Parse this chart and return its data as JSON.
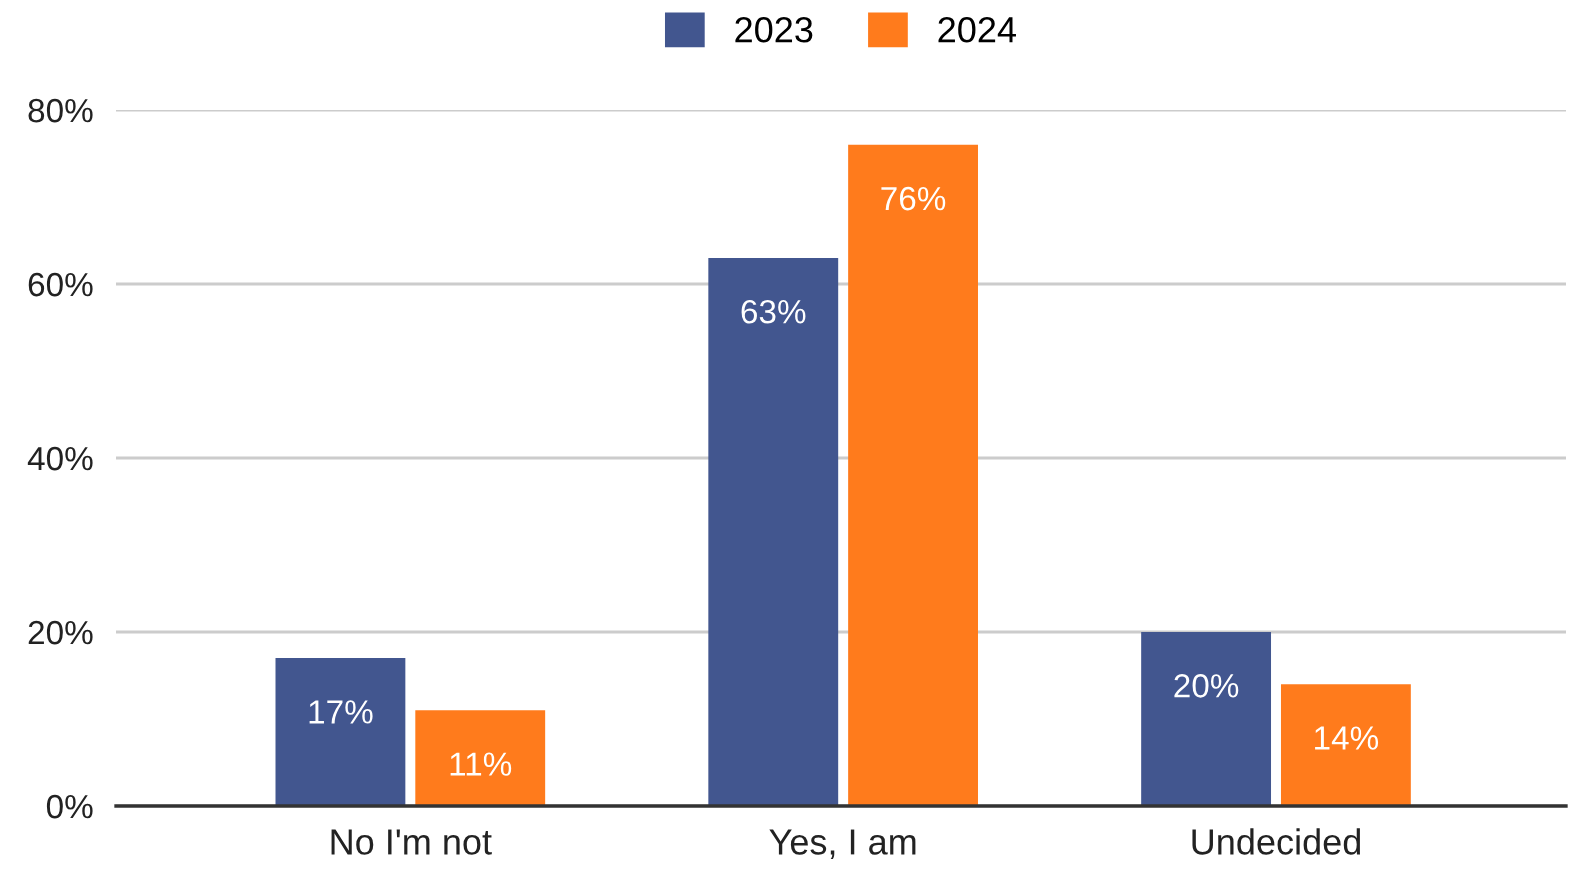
{
  "chart_data": {
    "type": "bar",
    "categories": [
      "No I'm not",
      "Yes, I am",
      "Undecided"
    ],
    "series": [
      {
        "name": "2023",
        "color": "#42568f",
        "values": [
          17,
          63,
          20
        ],
        "value_labels": [
          "17%",
          "63%",
          "20%"
        ]
      },
      {
        "name": "2024",
        "color": "#ff7b1c",
        "values": [
          11,
          76,
          14
        ],
        "value_labels": [
          "11%",
          "76%",
          "14%"
        ]
      }
    ],
    "ylim": [
      0,
      80
    ],
    "yticks": [
      {
        "value": 0,
        "label": "0%"
      },
      {
        "value": 20,
        "label": "20%"
      },
      {
        "value": 40,
        "label": "40%"
      },
      {
        "value": 60,
        "label": "60%"
      },
      {
        "value": 80,
        "label": "80%"
      }
    ],
    "grid": "y",
    "legend": "top"
  }
}
